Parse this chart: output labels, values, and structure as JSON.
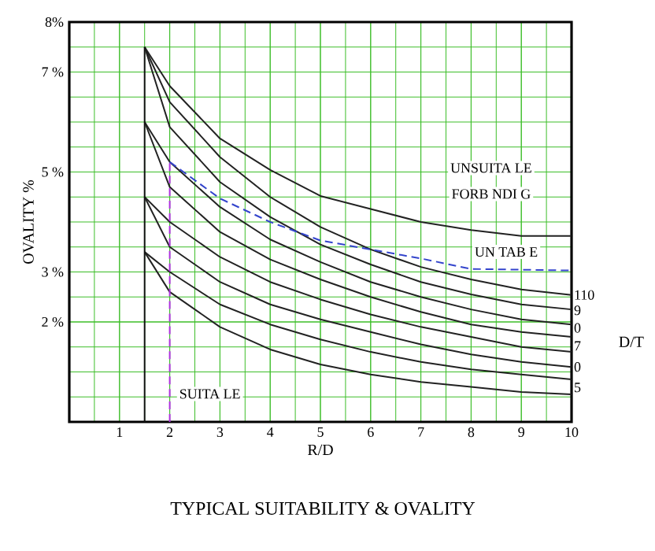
{
  "chart_data": {
    "type": "line",
    "title": "TYPICAL SUITABILITY & OVALITY",
    "xlabel": "R/D",
    "ylabel": "OVALITY %",
    "x": [
      1.5,
      2,
      3,
      4,
      5,
      6,
      7,
      8,
      9,
      10
    ],
    "series": [
      {
        "color": "#222222",
        "values": [
          7.5,
          6.72,
          5.67,
          5.04,
          4.52,
          4.26,
          4.0,
          3.84,
          3.72,
          3.72
        ]
      },
      {
        "color": "#222222",
        "values": [
          7.5,
          6.4,
          5.3,
          4.5,
          3.9,
          3.45,
          3.1,
          2.85,
          2.65,
          2.54
        ]
      },
      {
        "color": "#222222",
        "values": [
          7.5,
          5.9,
          4.8,
          4.1,
          3.55,
          3.15,
          2.8,
          2.55,
          2.35,
          2.25
        ]
      },
      {
        "color": "#222222",
        "values": [
          6.0,
          5.2,
          4.3,
          3.65,
          3.2,
          2.8,
          2.5,
          2.25,
          2.05,
          1.95
        ]
      },
      {
        "color": "#222222",
        "values": [
          6.0,
          4.7,
          3.8,
          3.25,
          2.85,
          2.5,
          2.2,
          1.95,
          1.8,
          1.7
        ]
      },
      {
        "color": "#222222",
        "values": [
          4.5,
          4.0,
          3.3,
          2.8,
          2.45,
          2.15,
          1.9,
          1.7,
          1.5,
          1.4
        ]
      },
      {
        "color": "#222222",
        "values": [
          4.5,
          3.5,
          2.8,
          2.35,
          2.05,
          1.8,
          1.55,
          1.35,
          1.2,
          1.1
        ]
      },
      {
        "color": "#222222",
        "values": [
          3.4,
          3.0,
          2.35,
          1.95,
          1.65,
          1.4,
          1.2,
          1.05,
          0.95,
          0.85
        ]
      },
      {
        "color": "#222222",
        "values": [
          3.4,
          2.6,
          1.9,
          1.45,
          1.15,
          0.95,
          0.8,
          0.7,
          0.6,
          0.55
        ]
      },
      {
        "color": "#111111",
        "x": [
          1.5,
          1.5
        ],
        "values": [
          0,
          7.5
        ]
      },
      {
        "color": "#b030e0",
        "line_style": "dashed",
        "x": [
          2,
          2
        ],
        "values": [
          0,
          5.2
        ]
      },
      {
        "color": "#3344cc",
        "line_style": "dashed",
        "x": [
          2,
          3,
          4,
          5,
          6,
          7,
          8,
          10
        ],
        "values": [
          5.2,
          4.47,
          4.0,
          3.63,
          3.45,
          3.27,
          3.06,
          3.03
        ]
      }
    ],
    "xlim": [
      0,
      10
    ],
    "ylim": [
      0,
      8
    ],
    "xticks": [
      1,
      2,
      3,
      4,
      5,
      6,
      7,
      8,
      9,
      10
    ],
    "yticks": [
      {
        "value": 2,
        "label": "2 %"
      },
      {
        "value": 3,
        "label": "3 %"
      },
      {
        "value": 5,
        "label": "5 %"
      },
      {
        "value": 7,
        "label": "7 %"
      },
      {
        "value": 8,
        "label": "8%"
      }
    ],
    "grid": true,
    "annotations": [
      "UNSUITA LE",
      "FORB NDI G",
      "UN TAB E",
      "SUITA LE",
      "110",
      "9",
      "0",
      "7",
      "0",
      "5",
      "D/T"
    ]
  }
}
